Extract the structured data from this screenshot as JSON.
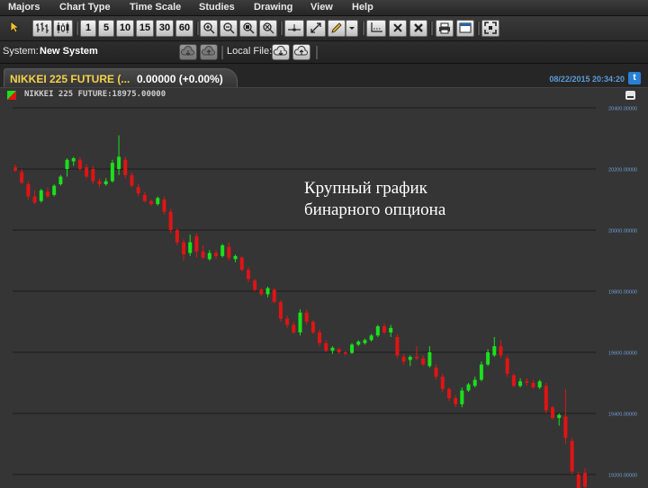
{
  "menu": [
    "Majors",
    "Chart Type",
    "Time Scale",
    "Studies",
    "Drawing",
    "View",
    "Help"
  ],
  "toolbar": {
    "intervals": [
      "1",
      "5",
      "10",
      "15",
      "30",
      "60"
    ],
    "icons": [
      "pointer-icon",
      "bar-chart-icon",
      "candlestick-icon",
      "zoom-in-icon",
      "zoom-out-icon",
      "zoom-fit-icon",
      "zoom-reset-icon",
      "trendline-icon",
      "extend-line-icon",
      "pencil-icon",
      "dropdown-arrow-icon",
      "crosshair-icon",
      "delete-drawing-icon",
      "delete-all-icon",
      "print-icon",
      "save-image-icon",
      "fullscreen-icon"
    ]
  },
  "system": {
    "label": "System:",
    "value": "New System",
    "local_file_label": "Local File:"
  },
  "tab": {
    "title": "NIKKEI 225 FUTURE (...",
    "change": "0.00000 (+0.00%)",
    "datetime": "08/22/2015 20:34:20",
    "twitter": "t"
  },
  "legend": "NIKKEI 225 FUTURE:18975.00000",
  "overlay": {
    "line1": "Крупный график",
    "line2": "бинарного опциона"
  },
  "colors": {
    "up": "#1be01b",
    "down": "#e01414",
    "axis_label": "#6fa0d8",
    "tab_title": "#f2d24a",
    "datetime": "#5b9bd5"
  },
  "chart_data": {
    "type": "candlestick",
    "symbol": "NIKKEI 225 FUTURE",
    "last": 18975,
    "ylim": [
      19150,
      20420
    ],
    "y_ticks": [
      20400,
      20200,
      20000,
      19800,
      19600,
      19400,
      19200
    ],
    "y_tick_labels": [
      "20400.00000",
      "20200.00000",
      "20000.00000",
      "19800.00000",
      "19600.00000",
      "19400.00000",
      "19200.00000"
    ],
    "grid": true,
    "candles": [
      {
        "o": 20205,
        "h": 20215,
        "l": 20190,
        "c": 20195
      },
      {
        "o": 20190,
        "h": 20200,
        "l": 20150,
        "c": 20155
      },
      {
        "o": 20150,
        "h": 20160,
        "l": 20100,
        "c": 20110
      },
      {
        "o": 20110,
        "h": 20130,
        "l": 20085,
        "c": 20090
      },
      {
        "o": 20095,
        "h": 20135,
        "l": 20090,
        "c": 20130
      },
      {
        "o": 20125,
        "h": 20140,
        "l": 20105,
        "c": 20110
      },
      {
        "o": 20115,
        "h": 20150,
        "l": 20110,
        "c": 20145
      },
      {
        "o": 20150,
        "h": 20180,
        "l": 20145,
        "c": 20175
      },
      {
        "o": 20200,
        "h": 20235,
        "l": 20175,
        "c": 20230
      },
      {
        "o": 20225,
        "h": 20240,
        "l": 20210,
        "c": 20235
      },
      {
        "o": 20230,
        "h": 20240,
        "l": 20195,
        "c": 20200
      },
      {
        "o": 20205,
        "h": 20215,
        "l": 20170,
        "c": 20175
      },
      {
        "o": 20200,
        "h": 20210,
        "l": 20150,
        "c": 20160
      },
      {
        "o": 20160,
        "h": 20170,
        "l": 20140,
        "c": 20150
      },
      {
        "o": 20150,
        "h": 20170,
        "l": 20145,
        "c": 20160
      },
      {
        "o": 20160,
        "h": 20230,
        "l": 20155,
        "c": 20220
      },
      {
        "o": 20200,
        "h": 20310,
        "l": 20180,
        "c": 20240
      },
      {
        "o": 20230,
        "h": 20240,
        "l": 20170,
        "c": 20180
      },
      {
        "o": 20180,
        "h": 20190,
        "l": 20140,
        "c": 20145
      },
      {
        "o": 20140,
        "h": 20150,
        "l": 20110,
        "c": 20120
      },
      {
        "o": 20115,
        "h": 20125,
        "l": 20090,
        "c": 20095
      },
      {
        "o": 20095,
        "h": 20100,
        "l": 20080,
        "c": 20085
      },
      {
        "o": 20085,
        "h": 20110,
        "l": 20080,
        "c": 20105
      },
      {
        "o": 20100,
        "h": 20110,
        "l": 20050,
        "c": 20060
      },
      {
        "o": 20060,
        "h": 20070,
        "l": 19990,
        "c": 20000
      },
      {
        "o": 20000,
        "h": 20005,
        "l": 19950,
        "c": 19960
      },
      {
        "o": 19960,
        "h": 19970,
        "l": 19900,
        "c": 19920
      },
      {
        "o": 19925,
        "h": 19985,
        "l": 19915,
        "c": 19960
      },
      {
        "o": 19980,
        "h": 19990,
        "l": 19910,
        "c": 19930
      },
      {
        "o": 19930,
        "h": 19950,
        "l": 19905,
        "c": 19910
      },
      {
        "o": 19905,
        "h": 19935,
        "l": 19900,
        "c": 19925
      },
      {
        "o": 19925,
        "h": 19935,
        "l": 19905,
        "c": 19915
      },
      {
        "o": 19915,
        "h": 19955,
        "l": 19910,
        "c": 19950
      },
      {
        "o": 19945,
        "h": 19960,
        "l": 19900,
        "c": 19910
      },
      {
        "o": 19905,
        "h": 19920,
        "l": 19895,
        "c": 19915
      },
      {
        "o": 19910,
        "h": 19915,
        "l": 19865,
        "c": 19870
      },
      {
        "o": 19870,
        "h": 19880,
        "l": 19830,
        "c": 19840
      },
      {
        "o": 19835,
        "h": 19840,
        "l": 19800,
        "c": 19805
      },
      {
        "o": 19805,
        "h": 19810,
        "l": 19785,
        "c": 19790
      },
      {
        "o": 19790,
        "h": 19815,
        "l": 19780,
        "c": 19810
      },
      {
        "o": 19805,
        "h": 19810,
        "l": 19760,
        "c": 19765
      },
      {
        "o": 19765,
        "h": 19770,
        "l": 19700,
        "c": 19710
      },
      {
        "o": 19710,
        "h": 19720,
        "l": 19680,
        "c": 19690
      },
      {
        "o": 19690,
        "h": 19700,
        "l": 19660,
        "c": 19665
      },
      {
        "o": 19665,
        "h": 19740,
        "l": 19655,
        "c": 19730
      },
      {
        "o": 19730,
        "h": 19740,
        "l": 19690,
        "c": 19700
      },
      {
        "o": 19700,
        "h": 19705,
        "l": 19660,
        "c": 19665
      },
      {
        "o": 19665,
        "h": 19675,
        "l": 19620,
        "c": 19630
      },
      {
        "o": 19630,
        "h": 19640,
        "l": 19600,
        "c": 19605
      },
      {
        "o": 19605,
        "h": 19620,
        "l": 19595,
        "c": 19615
      },
      {
        "o": 19610,
        "h": 19615,
        "l": 19595,
        "c": 19600
      },
      {
        "o": 19600,
        "h": 19605,
        "l": 19590,
        "c": 19598
      },
      {
        "o": 19598,
        "h": 19630,
        "l": 19595,
        "c": 19625
      },
      {
        "o": 19625,
        "h": 19640,
        "l": 19620,
        "c": 19635
      },
      {
        "o": 19630,
        "h": 19645,
        "l": 19625,
        "c": 19640
      },
      {
        "o": 19640,
        "h": 19660,
        "l": 19635,
        "c": 19655
      },
      {
        "o": 19655,
        "h": 19690,
        "l": 19650,
        "c": 19685
      },
      {
        "o": 19685,
        "h": 19695,
        "l": 19660,
        "c": 19665
      },
      {
        "o": 19665,
        "h": 19690,
        "l": 19650,
        "c": 19680
      },
      {
        "o": 19650,
        "h": 19660,
        "l": 19580,
        "c": 19590
      },
      {
        "o": 19585,
        "h": 19595,
        "l": 19560,
        "c": 19570
      },
      {
        "o": 19575,
        "h": 19590,
        "l": 19555,
        "c": 19585
      },
      {
        "o": 19585,
        "h": 19620,
        "l": 19575,
        "c": 19580
      },
      {
        "o": 19580,
        "h": 19590,
        "l": 19555,
        "c": 19560
      },
      {
        "o": 19555,
        "h": 19620,
        "l": 19550,
        "c": 19600
      },
      {
        "o": 19550,
        "h": 19560,
        "l": 19510,
        "c": 19520
      },
      {
        "o": 19520,
        "h": 19530,
        "l": 19470,
        "c": 19480
      },
      {
        "o": 19480,
        "h": 19485,
        "l": 19440,
        "c": 19450
      },
      {
        "o": 19450,
        "h": 19460,
        "l": 19420,
        "c": 19430
      },
      {
        "o": 19430,
        "h": 19485,
        "l": 19420,
        "c": 19475
      },
      {
        "o": 19475,
        "h": 19500,
        "l": 19470,
        "c": 19495
      },
      {
        "o": 19490,
        "h": 19520,
        "l": 19485,
        "c": 19510
      },
      {
        "o": 19510,
        "h": 19570,
        "l": 19505,
        "c": 19560
      },
      {
        "o": 19560,
        "h": 19610,
        "l": 19555,
        "c": 19600
      },
      {
        "o": 19590,
        "h": 19650,
        "l": 19585,
        "c": 19620
      },
      {
        "o": 19620,
        "h": 19640,
        "l": 19580,
        "c": 19590
      },
      {
        "o": 19580,
        "h": 19590,
        "l": 19520,
        "c": 19530
      },
      {
        "o": 19525,
        "h": 19530,
        "l": 19485,
        "c": 19490
      },
      {
        "o": 19490,
        "h": 19515,
        "l": 19485,
        "c": 19505
      },
      {
        "o": 19505,
        "h": 19515,
        "l": 19490,
        "c": 19500
      },
      {
        "o": 19500,
        "h": 19510,
        "l": 19480,
        "c": 19485
      },
      {
        "o": 19485,
        "h": 19510,
        "l": 19480,
        "c": 19505
      },
      {
        "o": 19490,
        "h": 19500,
        "l": 19400,
        "c": 19410
      },
      {
        "o": 19420,
        "h": 19425,
        "l": 19380,
        "c": 19385
      },
      {
        "o": 19385,
        "h": 19400,
        "l": 19360,
        "c": 19395
      },
      {
        "o": 19390,
        "h": 19480,
        "l": 19300,
        "c": 19320
      },
      {
        "o": 19310,
        "h": 19320,
        "l": 19200,
        "c": 19210
      },
      {
        "o": 19200,
        "h": 19210,
        "l": 19100,
        "c": 19120
      },
      {
        "o": 19205,
        "h": 19220,
        "l": 19150,
        "c": 19160
      }
    ]
  }
}
